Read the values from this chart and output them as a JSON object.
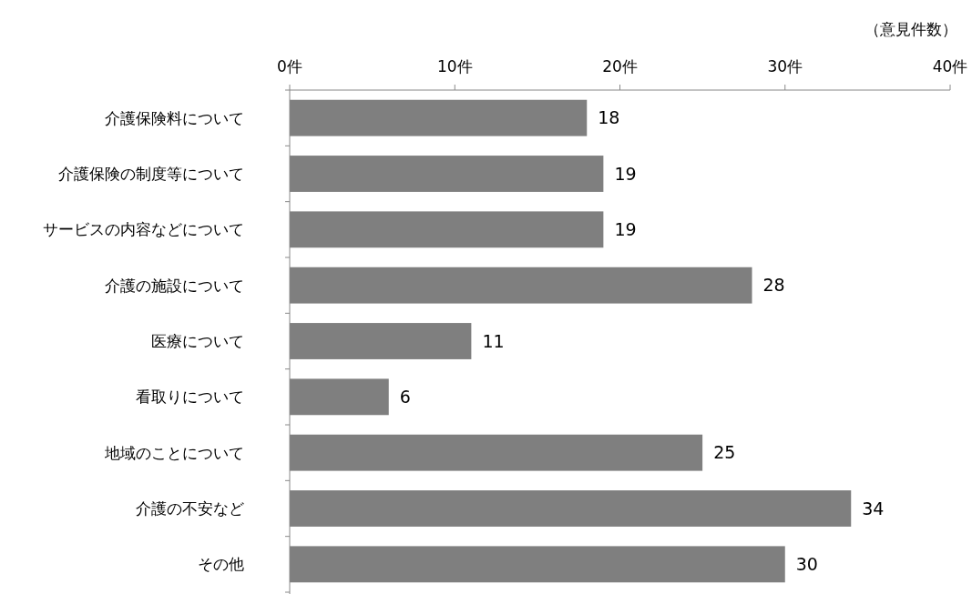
{
  "chart_data": {
    "type": "bar",
    "orientation": "horizontal",
    "xlabel": "（意見件数）",
    "categories": [
      "介護保険料について",
      "介護保険の制度等について",
      "サービスの内容などについて",
      "介護の施設について",
      "医療について",
      "看取りについて",
      "地域のことについて",
      "介護の不安など",
      "その他"
    ],
    "values": [
      18,
      19,
      19,
      28,
      11,
      6,
      25,
      34,
      30
    ],
    "color": "#7f7f7f",
    "xlim": [
      0,
      40
    ],
    "xticks": [
      {
        "value": 0,
        "label": "0件"
      },
      {
        "value": 10,
        "label": "10件"
      },
      {
        "value": 20,
        "label": "20件"
      },
      {
        "value": 30,
        "label": "30件"
      },
      {
        "value": 40,
        "label": "40件"
      }
    ],
    "data_labels": true
  }
}
